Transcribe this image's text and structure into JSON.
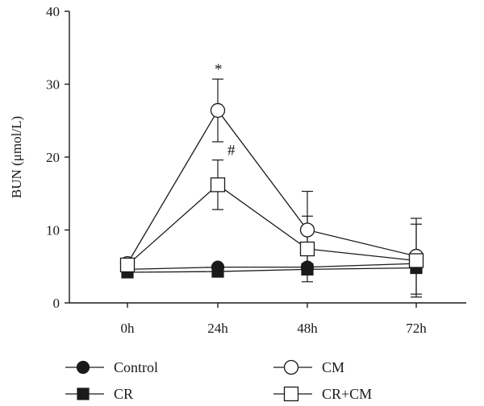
{
  "chart_data": {
    "type": "line",
    "ylabel": "BUN (μmol/L)",
    "categories": [
      "0h",
      "24h",
      "48h",
      "72h"
    ],
    "ylim": [
      0,
      40
    ],
    "yticks": [
      0,
      10,
      20,
      30,
      40
    ],
    "grid": false,
    "legend_position": "bottom",
    "series": [
      {
        "name": "Control",
        "marker": "filled-circle",
        "values": [
          4.6,
          4.9,
          4.9,
          5.4
        ],
        "errors": [
          0.4,
          0.4,
          0.5,
          0.6
        ]
      },
      {
        "name": "CR",
        "marker": "filled-square",
        "values": [
          4.2,
          4.3,
          4.6,
          4.8
        ],
        "errors": [
          0.3,
          0.3,
          0.5,
          0.5
        ]
      },
      {
        "name": "CM",
        "marker": "open-circle",
        "values": [
          5.4,
          26.4,
          10.0,
          6.4
        ],
        "errors": [
          0.5,
          4.3,
          5.3,
          5.2
        ]
      },
      {
        "name": "CR+CM",
        "marker": "open-square",
        "values": [
          5.2,
          16.2,
          7.4,
          5.8
        ],
        "errors": [
          0.5,
          3.4,
          4.5,
          5.0
        ]
      }
    ],
    "annotations": [
      {
        "text": "*",
        "series": "CM",
        "category": "24h"
      },
      {
        "text": "#",
        "series": "CR+CM",
        "category": "24h"
      }
    ]
  }
}
